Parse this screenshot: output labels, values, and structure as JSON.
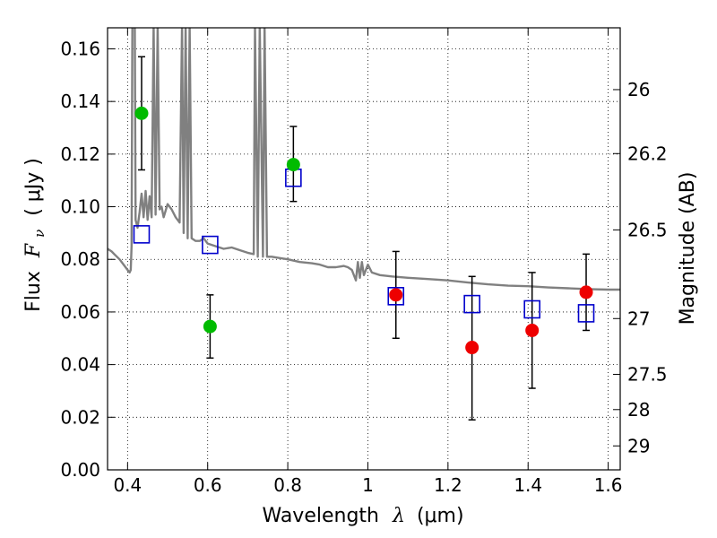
{
  "chart_data": {
    "type": "scatter",
    "xlabel": {
      "text": "Wavelength",
      "symbol": "λ",
      "unit": "(μm)"
    },
    "ylabel": {
      "text": "Flux",
      "symbol": "F",
      "subscript": "ν",
      "unit": "( μJy )"
    },
    "y2label": "Magnitude (AB)",
    "xlim": [
      0.35,
      1.63
    ],
    "ylim": [
      0.0,
      0.168
    ],
    "grid": true,
    "grid_style": "dotted",
    "x_ticks": [
      {
        "value": 0.4,
        "label": "0.4"
      },
      {
        "value": 0.6,
        "label": "0.6"
      },
      {
        "value": 0.8,
        "label": "0.8"
      },
      {
        "value": 1.0,
        "label": "1"
      },
      {
        "value": 1.2,
        "label": "1.2"
      },
      {
        "value": 1.4,
        "label": "1.4"
      },
      {
        "value": 1.6,
        "label": "1.6"
      }
    ],
    "y_ticks": [
      {
        "value": 0.0,
        "label": "0.00"
      },
      {
        "value": 0.02,
        "label": "0.02"
      },
      {
        "value": 0.04,
        "label": "0.04"
      },
      {
        "value": 0.06,
        "label": "0.06"
      },
      {
        "value": 0.08,
        "label": "0.08"
      },
      {
        "value": 0.1,
        "label": "0.10"
      },
      {
        "value": 0.12,
        "label": "0.12"
      },
      {
        "value": 0.14,
        "label": "0.14"
      },
      {
        "value": 0.16,
        "label": "0.16"
      }
    ],
    "y2_ticks": [
      {
        "flux": 0.1445,
        "label": "26"
      },
      {
        "flux": 0.1202,
        "label": "26.2"
      },
      {
        "flux": 0.0912,
        "label": "26.5"
      },
      {
        "flux": 0.0575,
        "label": "27"
      },
      {
        "flux": 0.0363,
        "label": "27.5"
      },
      {
        "flux": 0.0229,
        "label": "28"
      },
      {
        "flux": 0.0091,
        "label": "29"
      }
    ],
    "series": [
      {
        "marker": "circle-filled",
        "color": "#00bb00",
        "points": [
          {
            "x": 0.435,
            "y": 0.1355,
            "err_low": 0.0215,
            "err_high": 0.0215
          },
          {
            "x": 0.606,
            "y": 0.0545,
            "err_low": 0.012,
            "err_high": 0.012
          },
          {
            "x": 0.814,
            "y": 0.116,
            "err_low": 0.014,
            "err_high": 0.0145
          }
        ]
      },
      {
        "marker": "circle-filled",
        "color": "#ee0000",
        "points": [
          {
            "x": 1.07,
            "y": 0.0665,
            "err_low": 0.0165,
            "err_high": 0.0165
          },
          {
            "x": 1.26,
            "y": 0.0465,
            "err_low": 0.0275,
            "err_high": 0.027
          },
          {
            "x": 1.41,
            "y": 0.053,
            "err_low": 0.022,
            "err_high": 0.022
          },
          {
            "x": 1.545,
            "y": 0.0675,
            "err_low": 0.0145,
            "err_high": 0.0145
          }
        ]
      },
      {
        "marker": "square-open",
        "color": "#0000cc",
        "points": [
          {
            "x": 0.435,
            "y": 0.0895
          },
          {
            "x": 0.606,
            "y": 0.0855
          },
          {
            "x": 0.814,
            "y": 0.111
          },
          {
            "x": 1.07,
            "y": 0.066
          },
          {
            "x": 1.26,
            "y": 0.063
          },
          {
            "x": 1.41,
            "y": 0.061
          },
          {
            "x": 1.545,
            "y": 0.0595
          }
        ]
      },
      {
        "type": "line",
        "color": "#808080",
        "points": [
          [
            0.35,
            0.084
          ],
          [
            0.36,
            0.083
          ],
          [
            0.37,
            0.0815
          ],
          [
            0.38,
            0.08
          ],
          [
            0.39,
            0.078
          ],
          [
            0.4,
            0.076
          ],
          [
            0.405,
            0.075
          ],
          [
            0.408,
            0.076
          ],
          [
            0.41,
            0.085
          ],
          [
            0.412,
            0.169
          ],
          [
            0.418,
            0.169
          ],
          [
            0.42,
            0.095
          ],
          [
            0.425,
            0.092
          ],
          [
            0.43,
            0.098
          ],
          [
            0.435,
            0.105
          ],
          [
            0.44,
            0.096
          ],
          [
            0.445,
            0.106
          ],
          [
            0.45,
            0.095
          ],
          [
            0.455,
            0.104
          ],
          [
            0.46,
            0.096
          ],
          [
            0.465,
            0.169
          ],
          [
            0.47,
            0.097
          ],
          [
            0.475,
            0.169
          ],
          [
            0.48,
            0.099
          ],
          [
            0.485,
            0.1
          ],
          [
            0.49,
            0.096
          ],
          [
            0.5,
            0.101
          ],
          [
            0.51,
            0.099
          ],
          [
            0.52,
            0.096
          ],
          [
            0.53,
            0.094
          ],
          [
            0.536,
            0.169
          ],
          [
            0.54,
            0.09
          ],
          [
            0.545,
            0.169
          ],
          [
            0.55,
            0.088
          ],
          [
            0.555,
            0.169
          ],
          [
            0.56,
            0.088
          ],
          [
            0.57,
            0.087
          ],
          [
            0.58,
            0.087
          ],
          [
            0.59,
            0.088
          ],
          [
            0.6,
            0.086
          ],
          [
            0.62,
            0.085
          ],
          [
            0.64,
            0.084
          ],
          [
            0.66,
            0.0845
          ],
          [
            0.68,
            0.0835
          ],
          [
            0.7,
            0.0825
          ],
          [
            0.715,
            0.082
          ],
          [
            0.718,
            0.169
          ],
          [
            0.725,
            0.081
          ],
          [
            0.73,
            0.169
          ],
          [
            0.738,
            0.081
          ],
          [
            0.742,
            0.169
          ],
          [
            0.748,
            0.081
          ],
          [
            0.76,
            0.081
          ],
          [
            0.78,
            0.0805
          ],
          [
            0.8,
            0.08
          ],
          [
            0.83,
            0.079
          ],
          [
            0.86,
            0.0785
          ],
          [
            0.88,
            0.078
          ],
          [
            0.9,
            0.077
          ],
          [
            0.92,
            0.077
          ],
          [
            0.94,
            0.0775
          ],
          [
            0.95,
            0.077
          ],
          [
            0.96,
            0.076
          ],
          [
            0.97,
            0.072
          ],
          [
            0.975,
            0.079
          ],
          [
            0.98,
            0.073
          ],
          [
            0.985,
            0.079
          ],
          [
            0.99,
            0.074
          ],
          [
            1.0,
            0.078
          ],
          [
            1.01,
            0.075
          ],
          [
            1.03,
            0.074
          ],
          [
            1.06,
            0.0735
          ],
          [
            1.1,
            0.073
          ],
          [
            1.15,
            0.0725
          ],
          [
            1.2,
            0.072
          ],
          [
            1.25,
            0.0712
          ],
          [
            1.3,
            0.0705
          ],
          [
            1.35,
            0.07
          ],
          [
            1.4,
            0.0698
          ],
          [
            1.45,
            0.0693
          ],
          [
            1.5,
            0.069
          ],
          [
            1.55,
            0.0687
          ],
          [
            1.6,
            0.0685
          ],
          [
            1.63,
            0.0685
          ]
        ]
      }
    ]
  }
}
